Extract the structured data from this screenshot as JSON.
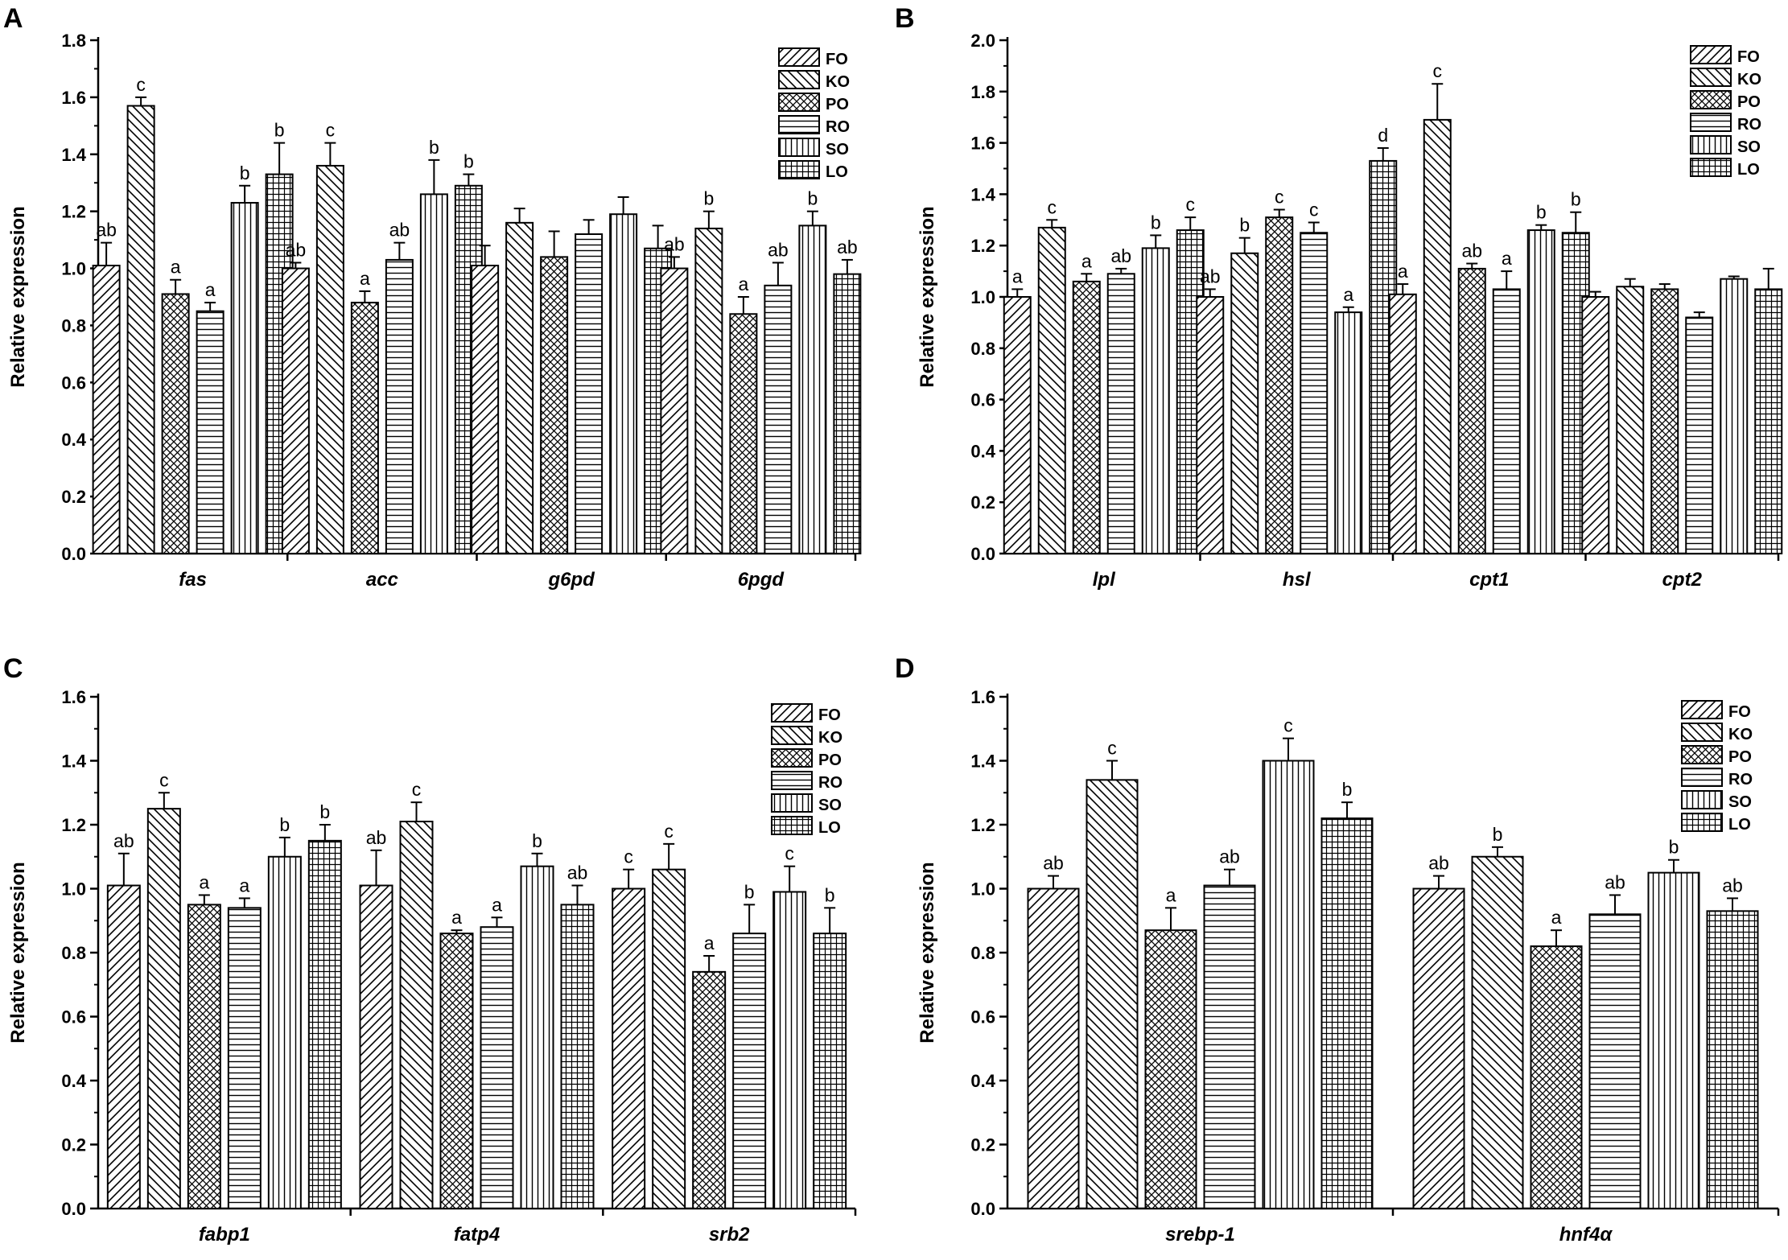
{
  "figure": {
    "legend_labels": [
      "FO",
      "KO",
      "PO",
      "RO",
      "SO",
      "LO"
    ],
    "ylabel": "Relative expression"
  },
  "chart_data": [
    {
      "panel": "A",
      "type": "bar",
      "ylabel": "Relative expression",
      "ylim": [
        0,
        1.8
      ],
      "yticks": [
        "0.0",
        "0.2",
        "0.4",
        "0.6",
        "0.8",
        "1.0",
        "1.2",
        "1.4",
        "1.6",
        "1.8"
      ],
      "categories": [
        "fas",
        "acc",
        "g6pd",
        "6pgd"
      ],
      "legend": "top-right",
      "series": [
        {
          "name": "FO",
          "values": [
            1.01,
            1.0,
            1.01,
            1.0
          ],
          "errors": [
            0.08,
            0.02,
            0.07,
            0.04
          ],
          "labels": [
            "ab",
            "ab",
            "",
            "ab"
          ]
        },
        {
          "name": "KO",
          "values": [
            1.57,
            1.36,
            1.16,
            1.14
          ],
          "errors": [
            0.03,
            0.08,
            0.05,
            0.06
          ],
          "labels": [
            "c",
            "c",
            "",
            "b"
          ]
        },
        {
          "name": "PO",
          "values": [
            0.91,
            0.88,
            1.04,
            0.84
          ],
          "errors": [
            0.05,
            0.04,
            0.09,
            0.06
          ],
          "labels": [
            "a",
            "a",
            "",
            "a"
          ]
        },
        {
          "name": "RO",
          "values": [
            0.85,
            1.03,
            1.12,
            0.94
          ],
          "errors": [
            0.03,
            0.06,
            0.05,
            0.08
          ],
          "labels": [
            "a",
            "ab",
            "",
            "ab"
          ]
        },
        {
          "name": "SO",
          "values": [
            1.23,
            1.26,
            1.19,
            1.15
          ],
          "errors": [
            0.06,
            0.12,
            0.06,
            0.05
          ],
          "labels": [
            "b",
            "b",
            "",
            "b"
          ]
        },
        {
          "name": "LO",
          "values": [
            1.33,
            1.29,
            1.07,
            0.98
          ],
          "errors": [
            0.11,
            0.04,
            0.08,
            0.05
          ],
          "labels": [
            "b",
            "b",
            "",
            "ab"
          ]
        }
      ]
    },
    {
      "panel": "B",
      "type": "bar",
      "ylabel": "Relative expression",
      "ylim": [
        0,
        2.0
      ],
      "yticks": [
        "0.0",
        "0.2",
        "0.4",
        "0.6",
        "0.8",
        "1.0",
        "1.2",
        "1.4",
        "1.6",
        "1.8",
        "2.0"
      ],
      "categories": [
        "lpl",
        "hsl",
        "cpt1",
        "cpt2"
      ],
      "legend": "top-right",
      "series": [
        {
          "name": "FO",
          "values": [
            1.0,
            1.0,
            1.01,
            1.0
          ],
          "errors": [
            0.03,
            0.03,
            0.04,
            0.02
          ],
          "labels": [
            "a",
            "ab",
            "a",
            ""
          ]
        },
        {
          "name": "KO",
          "values": [
            1.27,
            1.17,
            1.69,
            1.04
          ],
          "errors": [
            0.03,
            0.06,
            0.14,
            0.03
          ],
          "labels": [
            "c",
            "b",
            "c",
            ""
          ]
        },
        {
          "name": "PO",
          "values": [
            1.06,
            1.31,
            1.11,
            1.03
          ],
          "errors": [
            0.03,
            0.03,
            0.02,
            0.02
          ],
          "labels": [
            "a",
            "c",
            "ab",
            ""
          ]
        },
        {
          "name": "RO",
          "values": [
            1.09,
            1.25,
            1.03,
            0.92
          ],
          "errors": [
            0.02,
            0.04,
            0.07,
            0.02
          ],
          "labels": [
            "ab",
            "c",
            "a",
            ""
          ]
        },
        {
          "name": "SO",
          "values": [
            1.19,
            0.94,
            1.26,
            1.07
          ],
          "errors": [
            0.05,
            0.02,
            0.02,
            0.01
          ],
          "labels": [
            "b",
            "a",
            "b",
            ""
          ]
        },
        {
          "name": "LO",
          "values": [
            1.26,
            1.53,
            1.25,
            1.03
          ],
          "errors": [
            0.05,
            0.05,
            0.08,
            0.08
          ],
          "labels": [
            "c",
            "d",
            "b",
            ""
          ]
        }
      ]
    },
    {
      "panel": "C",
      "type": "bar",
      "ylabel": "Relative expression",
      "ylim": [
        0,
        1.6
      ],
      "yticks": [
        "0.0",
        "0.2",
        "0.4",
        "0.6",
        "0.8",
        "1.0",
        "1.2",
        "1.4",
        "1.6"
      ],
      "categories": [
        "fabp1",
        "fatp4",
        "srb2"
      ],
      "legend": "top-right",
      "series": [
        {
          "name": "FO",
          "values": [
            1.01,
            1.01,
            1.0
          ],
          "errors": [
            0.1,
            0.11,
            0.06
          ],
          "labels": [
            "ab",
            "ab",
            "c"
          ]
        },
        {
          "name": "KO",
          "values": [
            1.25,
            1.21,
            1.06
          ],
          "errors": [
            0.05,
            0.06,
            0.08
          ],
          "labels": [
            "c",
            "c",
            "c"
          ]
        },
        {
          "name": "PO",
          "values": [
            0.95,
            0.86,
            0.74
          ],
          "errors": [
            0.03,
            0.01,
            0.05
          ],
          "labels": [
            "a",
            "a",
            "a"
          ]
        },
        {
          "name": "RO",
          "values": [
            0.94,
            0.88,
            0.86
          ],
          "errors": [
            0.03,
            0.03,
            0.09
          ],
          "labels": [
            "a",
            "a",
            "b"
          ]
        },
        {
          "name": "SO",
          "values": [
            1.1,
            1.07,
            0.99
          ],
          "errors": [
            0.06,
            0.04,
            0.08
          ],
          "labels": [
            "b",
            "b",
            "c"
          ]
        },
        {
          "name": "LO",
          "values": [
            1.15,
            0.95,
            0.86
          ],
          "errors": [
            0.05,
            0.06,
            0.08
          ],
          "labels": [
            "b",
            "ab",
            "b"
          ]
        }
      ]
    },
    {
      "panel": "D",
      "type": "bar",
      "ylabel": "Relative expression",
      "ylim": [
        0,
        1.6
      ],
      "yticks": [
        "0.0",
        "0.2",
        "0.4",
        "0.6",
        "0.8",
        "1.0",
        "1.2",
        "1.4",
        "1.6"
      ],
      "categories": [
        "srebp-1",
        "hnf4α"
      ],
      "legend": "top-right",
      "series": [
        {
          "name": "FO",
          "values": [
            1.0,
            1.0
          ],
          "errors": [
            0.04,
            0.04
          ],
          "labels": [
            "ab",
            "ab"
          ]
        },
        {
          "name": "KO",
          "values": [
            1.34,
            1.1
          ],
          "errors": [
            0.06,
            0.03
          ],
          "labels": [
            "c",
            "b"
          ]
        },
        {
          "name": "PO",
          "values": [
            0.87,
            0.82
          ],
          "errors": [
            0.07,
            0.05
          ],
          "labels": [
            "a",
            "a"
          ]
        },
        {
          "name": "RO",
          "values": [
            1.01,
            0.92
          ],
          "errors": [
            0.05,
            0.06
          ],
          "labels": [
            "ab",
            "ab"
          ]
        },
        {
          "name": "SO",
          "values": [
            1.4,
            1.05
          ],
          "errors": [
            0.07,
            0.04
          ],
          "labels": [
            "c",
            "b"
          ]
        },
        {
          "name": "LO",
          "values": [
            1.22,
            0.93
          ],
          "errors": [
            0.05,
            0.04
          ],
          "labels": [
            "b",
            "ab"
          ]
        }
      ]
    }
  ]
}
